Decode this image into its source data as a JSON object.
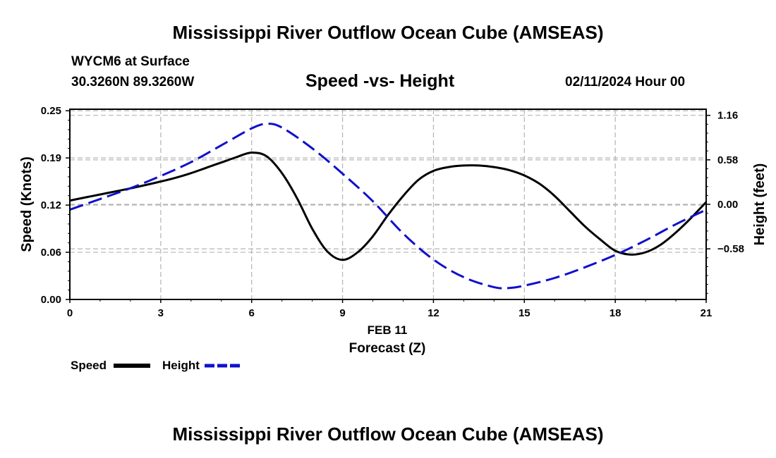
{
  "page": {
    "title_top": "Mississippi River Outflow Ocean Cube (AMSEAS)",
    "title_bottom": "Mississippi River Outflow Ocean Cube (AMSEAS)",
    "station": "WYCM6 at Surface",
    "coords": "30.3260N  89.3260W",
    "subtitle": "Speed -vs- Height",
    "datetime": "02/11/2024 Hour 00"
  },
  "legend": {
    "speed_label": "Speed",
    "height_label": "Height"
  },
  "colors": {
    "speed": "#000000",
    "height": "#1010cc",
    "grid": "#b4b4b4"
  },
  "chart_data": {
    "type": "line",
    "title": "Speed -vs- Height",
    "xlabel": "Forecast (Z)",
    "xlabel_date": "FEB 11",
    "x_ticks": [
      "0",
      "3",
      "6",
      "9",
      "12",
      "15",
      "18",
      "21"
    ],
    "xlim": [
      0,
      21
    ],
    "left_axis": {
      "label": "Speed (Knots)",
      "ylim": [
        0,
        0.25
      ],
      "ticks": [
        0,
        0.062,
        0.124,
        0.186,
        0.248
      ],
      "tick_labels": [
        "0.00",
        "0.06",
        "0.12",
        "0.19",
        "0.25"
      ]
    },
    "right_axis": {
      "label": "Height (feet)",
      "ylim": [
        -1.24,
        1.24
      ],
      "ticks": [
        -0.58,
        0,
        0.58,
        1.16
      ],
      "tick_labels": [
        "−0.58",
        "0.00",
        "0.58",
        "1.16"
      ]
    },
    "series": [
      {
        "name": "Speed",
        "axis": "left",
        "style": "solid",
        "x": [
          0,
          1,
          2,
          3,
          3.5,
          4,
          4.5,
          5,
          5.5,
          6,
          6.5,
          7,
          7.5,
          8,
          8.5,
          9,
          9.5,
          10,
          10.5,
          11,
          11.5,
          12,
          12.5,
          13,
          13.5,
          14,
          14.5,
          15,
          15.5,
          16,
          16.5,
          17,
          17.5,
          18,
          18.5,
          19,
          19.5,
          20,
          20.5,
          21
        ],
        "values": [
          0.13,
          0.138,
          0.146,
          0.155,
          0.16,
          0.166,
          0.173,
          0.18,
          0.187,
          0.193,
          0.188,
          0.166,
          0.133,
          0.093,
          0.063,
          0.052,
          0.062,
          0.083,
          0.111,
          0.136,
          0.157,
          0.169,
          0.174,
          0.176,
          0.176,
          0.174,
          0.17,
          0.163,
          0.152,
          0.136,
          0.116,
          0.096,
          0.079,
          0.064,
          0.059,
          0.062,
          0.072,
          0.088,
          0.107,
          0.128
        ]
      },
      {
        "name": "Height",
        "axis": "right",
        "style": "dashed",
        "x": [
          0,
          1,
          2,
          3,
          4,
          5,
          6,
          6.5,
          7,
          8,
          9,
          10,
          11,
          12,
          13,
          14,
          14.5,
          15,
          16,
          17,
          18,
          19,
          20,
          21
        ],
        "values": [
          -0.07,
          0.07,
          0.21,
          0.37,
          0.55,
          0.77,
          0.99,
          1.05,
          1.0,
          0.73,
          0.4,
          0.04,
          -0.38,
          -0.72,
          -0.95,
          -1.08,
          -1.09,
          -1.06,
          -0.96,
          -0.82,
          -0.66,
          -0.47,
          -0.26,
          -0.07
        ]
      }
    ]
  }
}
